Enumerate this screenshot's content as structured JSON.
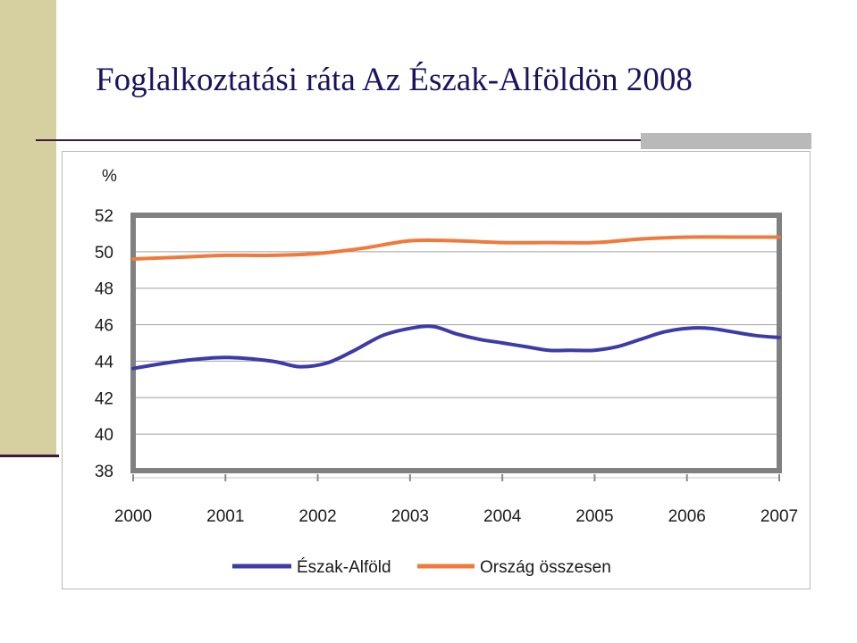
{
  "slide": {
    "title": "Foglalkoztatási ráta Az Észak-Alföldön 2008"
  },
  "colors": {
    "sidebar": "#d6cf9f",
    "title_text": "#1a1460",
    "plot_border": "#808080",
    "gridline": "#a0a0a0"
  },
  "chart_data": {
    "type": "line",
    "title": "",
    "ylabel": "%",
    "xlabel": "",
    "ylim": [
      38,
      52
    ],
    "yticks": [
      "38",
      "40",
      "42",
      "44",
      "46",
      "48",
      "50",
      "52"
    ],
    "x_range": [
      2000,
      2007
    ],
    "xticks": [
      "2000",
      "2001",
      "2002",
      "2003",
      "2004",
      "2005",
      "2006",
      "2007"
    ],
    "grid": true,
    "legend_position": "bottom",
    "series": [
      {
        "name": "Észak-Alföld",
        "color": "#3c3ca8",
        "x": [
          2000,
          2000.5,
          2001,
          2001.5,
          2001.8,
          2002.1,
          2002.4,
          2002.7,
          2003,
          2003.25,
          2003.5,
          2003.75,
          2004,
          2004.25,
          2004.5,
          2004.75,
          2005,
          2005.25,
          2005.5,
          2005.75,
          2006,
          2006.25,
          2006.5,
          2006.75,
          2007
        ],
        "values": [
          43.6,
          44.0,
          44.2,
          44.0,
          43.7,
          43.9,
          44.6,
          45.4,
          45.8,
          45.9,
          45.5,
          45.2,
          45.0,
          44.8,
          44.6,
          44.6,
          44.6,
          44.8,
          45.2,
          45.6,
          45.8,
          45.8,
          45.6,
          45.4,
          45.3
        ]
      },
      {
        "name": "Ország összesen",
        "color": "#f07a3c",
        "x": [
          2000,
          2000.5,
          2001,
          2001.5,
          2002,
          2002.5,
          2003,
          2003.5,
          2004,
          2004.5,
          2005,
          2005.5,
          2006,
          2006.5,
          2007
        ],
        "values": [
          49.6,
          49.7,
          49.8,
          49.8,
          49.9,
          50.2,
          50.6,
          50.6,
          50.5,
          50.5,
          50.5,
          50.7,
          50.8,
          50.8,
          50.8
        ]
      }
    ]
  }
}
